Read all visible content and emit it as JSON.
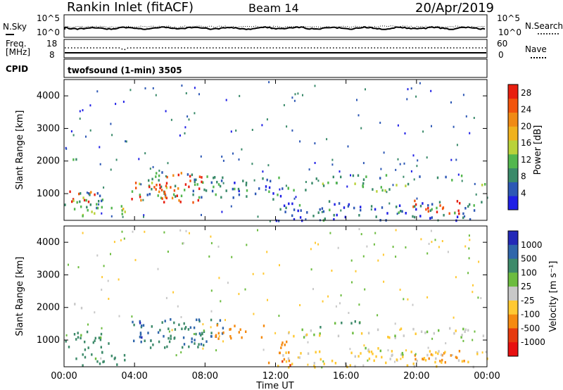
{
  "header": {
    "title": "Rankin Inlet (fitACF)",
    "beam": "Beam 14",
    "date": "20/Apr/2019"
  },
  "noise_panel": {
    "left_label": "N.Sky",
    "left_ticks": [
      "10^5",
      "10^0"
    ],
    "right_label": "N.Search",
    "right_ticks": [
      "10^5",
      "10^0"
    ]
  },
  "freq_panel": {
    "left_label_line1": "Freq.",
    "left_label_line2": "[MHz]",
    "left_ticks": [
      "18",
      "8"
    ],
    "right_ticks": [
      "60",
      "0"
    ],
    "right_label": "Nave"
  },
  "cpid_panel": {
    "label": "CPID",
    "text": "twofsound (1-min) 3505"
  },
  "x_axis": {
    "label": "Time UT",
    "ticks": [
      "00:00",
      "04:00",
      "08:00",
      "12:00",
      "16:00",
      "20:00",
      "00:00"
    ]
  },
  "chart_data": [
    {
      "type": "heatmap",
      "quantity": "power",
      "ylabel": "Slant Range [km]",
      "yticks": [
        "1000",
        "2000",
        "3000",
        "4000"
      ],
      "ylim": [
        180,
        4500
      ],
      "xlim_hours": [
        0,
        24
      ],
      "colorbar": {
        "label": "Power [dB]",
        "ticks": [
          "4",
          "8",
          "12",
          "16",
          "20",
          "24",
          "28"
        ],
        "range": [
          0,
          30
        ],
        "colors": [
          "#1f1fe6",
          "#2d58b5",
          "#3a8a6a",
          "#53b74e",
          "#b9d23a",
          "#f0b21e",
          "#f08a14",
          "#f2540c",
          "#e81f10"
        ]
      },
      "regions": [
        {
          "t0": 0.0,
          "t1": 1.7,
          "r0": 700,
          "r1": 1150,
          "value": 26
        },
        {
          "t0": 0.0,
          "t1": 2.2,
          "r0": 450,
          "r1": 1300,
          "value": 10
        },
        {
          "t0": 1.0,
          "t1": 3.8,
          "r0": 250,
          "r1": 650,
          "value": 13
        },
        {
          "t0": 0.0,
          "t1": 1.0,
          "r0": 1950,
          "r1": 2150,
          "value": 8
        },
        {
          "t0": 3.6,
          "t1": 9.0,
          "r0": 900,
          "r1": 1700,
          "value": 9
        },
        {
          "t0": 3.8,
          "t1": 5.8,
          "r0": 800,
          "r1": 1500,
          "value": 26
        },
        {
          "t0": 5.5,
          "t1": 7.8,
          "r0": 750,
          "r1": 1750,
          "value": 27
        },
        {
          "t0": 8.3,
          "t1": 12.5,
          "r0": 850,
          "r1": 1550,
          "value": 7
        },
        {
          "t0": 12.5,
          "t1": 19.5,
          "r0": 1100,
          "r1": 1400,
          "value": 12
        },
        {
          "t0": 14.2,
          "t1": 22.6,
          "r0": 1450,
          "r1": 1600,
          "value": 7
        },
        {
          "t0": 19.5,
          "t1": 22.6,
          "r0": 400,
          "r1": 850,
          "value": 26
        },
        {
          "t0": 22.6,
          "t1": 24.0,
          "r0": 1250,
          "r1": 1350,
          "value": 12
        },
        {
          "t0": 12.0,
          "t1": 24.0,
          "r0": 200,
          "r1": 800,
          "value": 6
        }
      ]
    },
    {
      "type": "heatmap",
      "quantity": "velocity",
      "ylabel": "Slant Range [km]",
      "yticks": [
        "1000",
        "2000",
        "3000",
        "4000"
      ],
      "ylim": [
        180,
        4500
      ],
      "xlim_hours": [
        0,
        24
      ],
      "colorbar": {
        "label": "Velocity [m s⁻¹]",
        "ticks": [
          "1000",
          "500",
          "100",
          "25",
          "-25",
          "-100",
          "-500",
          "-1000"
        ],
        "range": [
          -1000,
          1000
        ],
        "colors": [
          "#2329b8",
          "#2f66ab",
          "#3d8a6a",
          "#6cbc3f",
          "#c8c8c8",
          "#ffc933",
          "#f58a10",
          "#e63a0e",
          "#e81010"
        ]
      },
      "regions": [
        {
          "t0": 0.0,
          "t1": 2.5,
          "r0": 450,
          "r1": 1300,
          "value": 150
        },
        {
          "t0": 1.0,
          "t1": 4.0,
          "r0": 250,
          "r1": 700,
          "value": 200
        },
        {
          "t0": 0.0,
          "t1": 1.0,
          "r0": 1950,
          "r1": 2150,
          "value": 0
        },
        {
          "t0": 3.6,
          "t1": 9.0,
          "r0": 900,
          "r1": 1700,
          "value": 700
        },
        {
          "t0": 4.5,
          "t1": 8.0,
          "r0": 800,
          "r1": 1600,
          "value": 300
        },
        {
          "t0": 8.5,
          "t1": 11.5,
          "r0": 1000,
          "r1": 1500,
          "value": -300
        },
        {
          "t0": 11.5,
          "t1": 13.0,
          "r0": 250,
          "r1": 1000,
          "value": -400
        },
        {
          "t0": 12.5,
          "t1": 24.0,
          "r0": 1100,
          "r1": 1400,
          "value": 0
        },
        {
          "t0": 14.5,
          "t1": 17.0,
          "r0": 1400,
          "r1": 1650,
          "value": 150
        },
        {
          "t0": 19.5,
          "t1": 23.0,
          "r0": 350,
          "r1": 750,
          "value": -200
        },
        {
          "t0": 17.0,
          "t1": 19.5,
          "r0": 400,
          "r1": 800,
          "value": 10
        },
        {
          "t0": 12.0,
          "t1": 24.0,
          "r0": 200,
          "r1": 700,
          "value": -50
        }
      ]
    }
  ]
}
